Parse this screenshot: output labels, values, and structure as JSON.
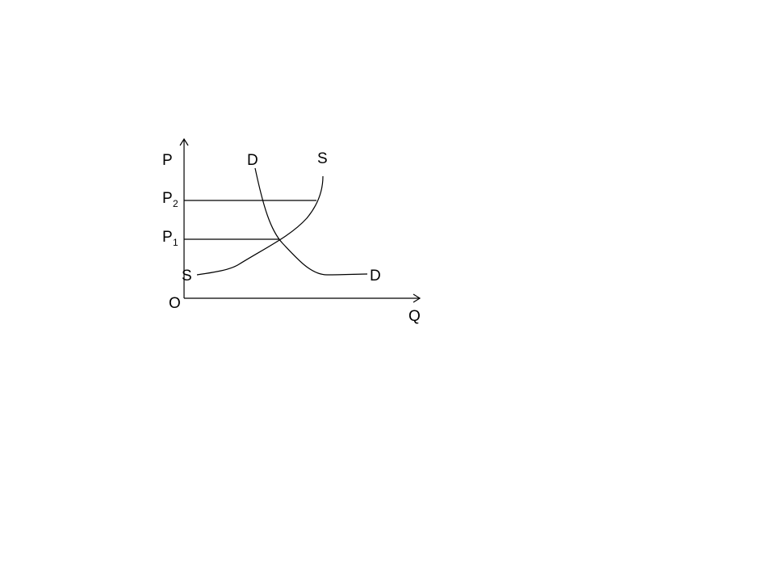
{
  "axes": {
    "y_label": "P",
    "x_label": "Q",
    "origin_label": "O"
  },
  "price_levels": [
    {
      "letter": "P",
      "subscript": "2"
    },
    {
      "letter": "P",
      "subscript": "1"
    }
  ],
  "curves": {
    "demand": {
      "label_start": "D",
      "label_end": "D"
    },
    "supply": {
      "label_start": "S",
      "label_end": "S"
    }
  },
  "colors": {
    "line": "#000000",
    "background": "#ffffff"
  }
}
